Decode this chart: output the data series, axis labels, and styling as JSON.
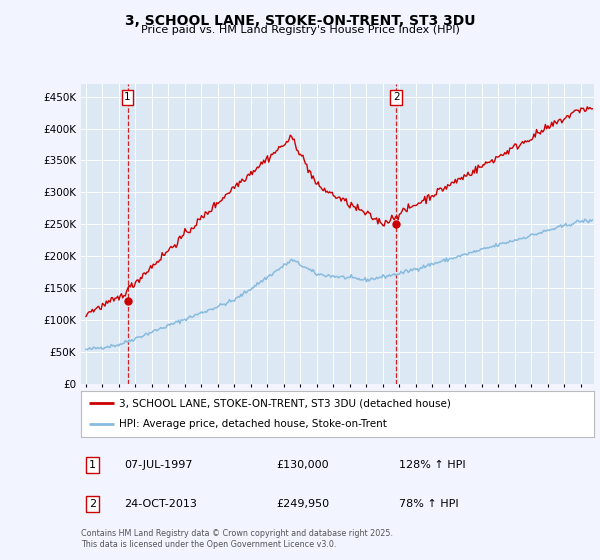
{
  "title": "3, SCHOOL LANE, STOKE-ON-TRENT, ST3 3DU",
  "subtitle": "Price paid vs. HM Land Registry's House Price Index (HPI)",
  "bg_color": "#f2f5ff",
  "plot_bg_color": "#dde8f5",
  "red_line_color": "#cc0000",
  "blue_line_color": "#88bbdd",
  "sale1_date": 1997.52,
  "sale1_price": 130000,
  "sale2_date": 2013.81,
  "sale2_price": 249950,
  "legend_entry1": "3, SCHOOL LANE, STOKE-ON-TRENT, ST3 3DU (detached house)",
  "legend_entry2": "HPI: Average price, detached house, Stoke-on-Trent",
  "ann1_date": "07-JUL-1997",
  "ann1_price": "£130,000",
  "ann1_hpi": "128% ↑ HPI",
  "ann2_date": "24-OCT-2013",
  "ann2_price": "£249,950",
  "ann2_hpi": "78% ↑ HPI",
  "footnote1": "Contains HM Land Registry data © Crown copyright and database right 2025.",
  "footnote2": "This data is licensed under the Open Government Licence v3.0.",
  "ylim": [
    0,
    470000
  ],
  "ytick_interval": 50000,
  "xlim_start": 1994.7,
  "xlim_end": 2025.8
}
